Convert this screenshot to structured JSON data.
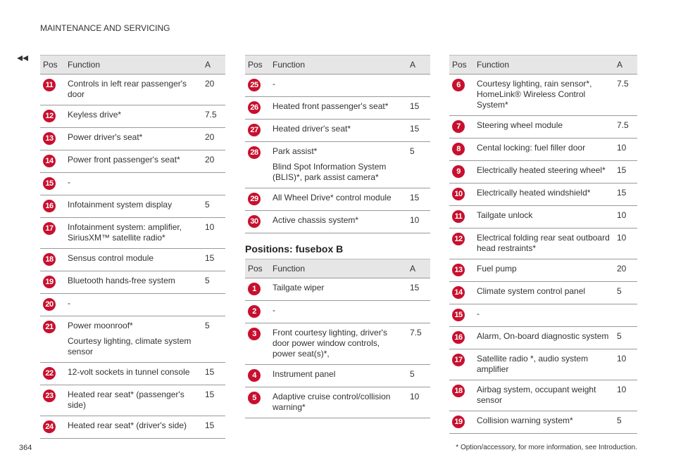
{
  "header": {
    "section": "MAINTENANCE AND SERVICING",
    "nav": "◂◂"
  },
  "section_heading": "Positions: fusebox B",
  "tables": [
    {
      "columns": [
        "Pos",
        "Function",
        "A"
      ],
      "rows": [
        {
          "pos": 11,
          "function": [
            "Controls in left rear passenger's door"
          ],
          "a": 20
        },
        {
          "pos": 12,
          "function": [
            "Keyless drive*"
          ],
          "a": 7.5
        },
        {
          "pos": 13,
          "function": [
            "Power driver's seat*"
          ],
          "a": 20
        },
        {
          "pos": 14,
          "function": [
            "Power front passenger's seat*"
          ],
          "a": 20
        },
        {
          "pos": 15,
          "function": [
            "-"
          ]
        },
        {
          "pos": 16,
          "function": [
            "Infotainment system display"
          ],
          "a": 5
        },
        {
          "pos": 17,
          "function": [
            "Infotainment system: amplifier, SiriusXM™ satellite radio*"
          ],
          "a": 10
        },
        {
          "pos": 18,
          "function": [
            "Sensus control module"
          ],
          "a": 15
        },
        {
          "pos": 19,
          "function": [
            "Bluetooth hands-free system"
          ],
          "a": 5
        },
        {
          "pos": 20,
          "function": [
            "-"
          ]
        },
        {
          "pos": 21,
          "function": [
            "Power moonroof*",
            "Courtesy lighting, climate system sensor"
          ],
          "a": 5
        },
        {
          "pos": 22,
          "function": [
            "12-volt sockets in tunnel console"
          ],
          "a": 15
        },
        {
          "pos": 23,
          "function": [
            "Heated rear seat* (passenger's side)"
          ],
          "a": 15
        },
        {
          "pos": 24,
          "function": [
            "Heated rear seat* (driver's side)"
          ],
          "a": 15
        }
      ]
    },
    {
      "columns": [
        "Pos",
        "Function",
        "A"
      ],
      "rows": [
        {
          "pos": 25,
          "function": [
            "-"
          ]
        },
        {
          "pos": 26,
          "function": [
            "Heated front passenger's seat*"
          ],
          "a": 15
        },
        {
          "pos": 27,
          "function": [
            "Heated driver's seat*"
          ],
          "a": 15
        },
        {
          "pos": 28,
          "function": [
            "Park assist*",
            "Blind Spot Information System (BLIS)*, park assist camera*"
          ],
          "a": 5
        },
        {
          "pos": 29,
          "function": [
            "All Wheel Drive* control module"
          ],
          "a": 15
        },
        {
          "pos": 30,
          "function": [
            "Active chassis system*"
          ],
          "a": 10
        }
      ]
    },
    {
      "columns": [
        "Pos",
        "Function",
        "A"
      ],
      "rows": [
        {
          "pos": 1,
          "function": [
            "Tailgate wiper"
          ],
          "a": 15
        },
        {
          "pos": 2,
          "function": [
            "-"
          ]
        },
        {
          "pos": 3,
          "function": [
            "Front courtesy lighting, driver's door power window controls, power seat(s)*,"
          ],
          "a": 7.5
        },
        {
          "pos": 4,
          "function": [
            "Instrument panel"
          ],
          "a": 5
        },
        {
          "pos": 5,
          "function": [
            "Adaptive cruise control/collision warning*"
          ],
          "a": 10
        }
      ]
    },
    {
      "columns": [
        "Pos",
        "Function",
        "A"
      ],
      "rows": [
        {
          "pos": 6,
          "function": [
            "Courtesy lighting, rain sensor*, HomeLink® Wireless Control System*"
          ],
          "a": 7.5
        },
        {
          "pos": 7,
          "function": [
            "Steering wheel module"
          ],
          "a": 7.5
        },
        {
          "pos": 8,
          "function": [
            "Cental locking: fuel filler door"
          ],
          "a": 10
        },
        {
          "pos": 9,
          "function": [
            "Electrically heated steering wheel*"
          ],
          "a": 15
        },
        {
          "pos": 10,
          "function": [
            "Electrically heated windshield*"
          ],
          "a": 15
        },
        {
          "pos": 11,
          "function": [
            "Tailgate unlock"
          ],
          "a": 10
        },
        {
          "pos": 12,
          "function": [
            "Electrical folding rear seat outboard head restraints*"
          ],
          "a": 10
        },
        {
          "pos": 13,
          "function": [
            "Fuel pump"
          ],
          "a": 20
        },
        {
          "pos": 14,
          "function": [
            "Climate system control panel"
          ],
          "a": 5
        },
        {
          "pos": 15,
          "function": [
            "-"
          ]
        },
        {
          "pos": 16,
          "function": [
            "Alarm, On-board diagnostic system"
          ],
          "a": 5
        },
        {
          "pos": 17,
          "function": [
            "Satellite radio *, audio system amplifier"
          ],
          "a": 10
        },
        {
          "pos": 18,
          "function": [
            "Airbag system, occupant weight sensor"
          ],
          "a": 10
        },
        {
          "pos": 19,
          "function": [
            "Collision warning system*"
          ],
          "a": 5
        }
      ]
    }
  ],
  "footer": {
    "page": "364",
    "note": "* Option/accessory, for more information, see Introduction."
  }
}
